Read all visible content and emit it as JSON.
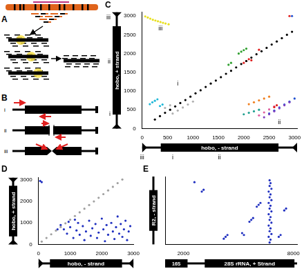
{
  "diagram_A": {
    "panel": "A"
  },
  "diagram_B": {
    "panel": "B",
    "rows": [
      "i",
      "ii",
      "iii"
    ]
  },
  "chart_data": [
    {
      "type": "scatter",
      "panel": "C",
      "x_label": "hobo, - strand",
      "y_label": "hobo, + strand",
      "xlim": [
        0,
        3050
      ],
      "ylim": [
        0,
        3100
      ],
      "xticks": [
        0,
        500,
        1000,
        1500,
        2000,
        2500,
        3000
      ],
      "yticks": [
        0,
        500,
        1000,
        1500,
        2000,
        2500,
        3000
      ],
      "grid": false,
      "x_axis_marks": [
        {
          "text": "iii",
          "value": 0
        },
        {
          "text": "i",
          "value": 600
        },
        {
          "text": "ii",
          "value": 1520
        }
      ],
      "y_axis_marks": [
        {
          "text": "i",
          "value": 390
        },
        {
          "text": "ii",
          "value": 1800
        },
        {
          "text": "iii",
          "value": 2970
        }
      ],
      "annotations": [
        {
          "text": "i",
          "x": 700,
          "y": 1150
        },
        {
          "text": "ii",
          "x": 2700,
          "y": 120
        },
        {
          "text": "iii",
          "x": 360,
          "y": 2620
        }
      ],
      "series": [
        {
          "color": "#000000",
          "x": [
            250,
            350,
            450,
            550,
            650,
            750,
            850,
            950,
            1050,
            1150,
            1250,
            1350,
            1450,
            1550,
            1650,
            1750,
            1850,
            1950,
            2050,
            2150,
            2250,
            2350,
            2450,
            2550,
            2650,
            2750,
            2850,
            2950
          ],
          "y": [
            240,
            330,
            420,
            500,
            590,
            680,
            760,
            850,
            940,
            1020,
            1110,
            1200,
            1280,
            1370,
            1460,
            1540,
            1630,
            1720,
            1800,
            1890,
            1980,
            2060,
            2150,
            2240,
            2320,
            2410,
            2500,
            2580
          ]
        },
        {
          "color": "#e8e020",
          "x": [
            60,
            110,
            160,
            210,
            260,
            310,
            360,
            410,
            460,
            520
          ],
          "y": [
            2990,
            2960,
            2930,
            2900,
            2880,
            2860,
            2840,
            2820,
            2800,
            2780
          ]
        },
        {
          "color": "#20b8d8",
          "x": [
            150,
            200,
            250,
            300,
            350,
            400
          ],
          "y": [
            650,
            700,
            740,
            780,
            600,
            640
          ]
        },
        {
          "color": "#b0b0b0",
          "x": [
            600,
            700,
            800,
            900,
            1000,
            450,
            550
          ],
          "y": [
            400,
            480,
            560,
            640,
            720,
            550,
            620
          ]
        },
        {
          "color": "#30a030",
          "x": [
            1900,
            1950,
            2000,
            2050,
            1700,
            1750
          ],
          "y": [
            2000,
            2050,
            2090,
            2130,
            1700,
            1750
          ]
        },
        {
          "color": "#e02020",
          "x": [
            2000,
            2050,
            2100,
            2150,
            2300,
            2600,
            2650,
            2900
          ],
          "y": [
            1750,
            1800,
            1850,
            1820,
            2100,
            570,
            620,
            3000
          ]
        },
        {
          "color": "#f08020",
          "x": [
            2100,
            2200,
            2300,
            2400,
            2500
          ],
          "y": [
            650,
            700,
            750,
            800,
            850
          ]
        },
        {
          "color": "#8040c0",
          "x": [
            2400,
            2500,
            2600,
            2700,
            2800,
            2900
          ],
          "y": [
            300,
            380,
            460,
            540,
            620,
            700
          ]
        },
        {
          "color": "#2050d0",
          "x": [
            2500,
            2600,
            2700,
            2800,
            2900,
            3000,
            2950
          ],
          "y": [
            400,
            480,
            560,
            640,
            720,
            800,
            3000
          ]
        },
        {
          "color": "#e060a0",
          "x": [
            2300,
            2400,
            2500,
            2600
          ],
          "y": [
            350,
            430,
            510,
            590
          ]
        },
        {
          "color": "#20a090",
          "x": [
            2000,
            2100,
            2200,
            2300
          ],
          "y": [
            380,
            420,
            460,
            500
          ]
        }
      ]
    },
    {
      "type": "scatter",
      "panel": "D",
      "x_label": "hobo, - strand",
      "y_label": "hobo, + strand",
      "xlim": [
        0,
        3000
      ],
      "ylim": [
        0,
        3100
      ],
      "xticks": [
        0,
        1000,
        2000,
        3000
      ],
      "yticks": [
        0,
        1000,
        2000,
        3000
      ],
      "grid": false,
      "series": [
        {
          "color": "#a0a0a0",
          "x": [
            100,
            250,
            400,
            550,
            700,
            850,
            1000,
            1150,
            1300,
            1450,
            1600,
            1750,
            1900,
            2050,
            2200,
            2350,
            2500,
            2650
          ],
          "y": [
            130,
            300,
            470,
            640,
            810,
            980,
            1150,
            1320,
            1490,
            1660,
            1830,
            2000,
            2170,
            2340,
            2510,
            2680,
            2850,
            3020
          ]
        },
        {
          "color": "#2030c0",
          "x": [
            700,
            800,
            900,
            1000,
            1100,
            1200,
            1250,
            1300,
            1400,
            1450,
            1500,
            1600,
            1650,
            1700,
            1800,
            1850,
            1900,
            2000,
            2050,
            2100,
            2150,
            2200,
            2300,
            2350,
            2400,
            2450,
            2500,
            2550,
            2600,
            2650,
            2700,
            2750,
            2800,
            2850,
            2900,
            1150,
            950,
            600,
            50,
            100
          ],
          "y": [
            900,
            700,
            500,
            800,
            300,
            650,
            1000,
            450,
            850,
            200,
            600,
            1100,
            400,
            750,
            950,
            300,
            550,
            1200,
            700,
            150,
            900,
            450,
            1000,
            600,
            250,
            800,
            1300,
            500,
            950,
            350,
            700,
            1100,
            200,
            600,
            850,
            1150,
            1050,
            700,
            2950,
            2900
          ]
        }
      ]
    },
    {
      "type": "scatter",
      "panel": "E",
      "x_label": [
        "16S",
        "28S rRNA, + Strand"
      ],
      "y_label": "R2, - strand",
      "xlim": [
        1000,
        8200
      ],
      "ylim": [
        0,
        3600
      ],
      "xticks": [
        2000,
        8000
      ],
      "grid": false,
      "tick_labels": "x",
      "series": [
        {
          "color": "#2030c0",
          "x": [
            6700,
            6750,
            6650,
            6800,
            6700,
            6750,
            6650,
            6800,
            6700,
            6750,
            6650,
            6800,
            6700,
            6750,
            6650,
            6800,
            6700,
            6750,
            6650,
            6800,
            6700,
            6750,
            6700,
            4200,
            4300,
            4400,
            5600,
            5700,
            5800,
            6000,
            6100,
            6200,
            3000,
            3100,
            5200,
            5300,
            7500,
            7600,
            2600,
            7200,
            7300
          ],
          "y": [
            100,
            250,
            400,
            550,
            700,
            850,
            1000,
            1150,
            1300,
            1450,
            1600,
            1750,
            1900,
            2050,
            2200,
            2350,
            2500,
            2650,
            2800,
            2950,
            3100,
            3250,
            3400,
            300,
            400,
            500,
            1200,
            1300,
            1400,
            2000,
            2100,
            2200,
            2800,
            2900,
            600,
            500,
            1800,
            1900,
            3300,
            400,
            500
          ]
        }
      ]
    }
  ]
}
